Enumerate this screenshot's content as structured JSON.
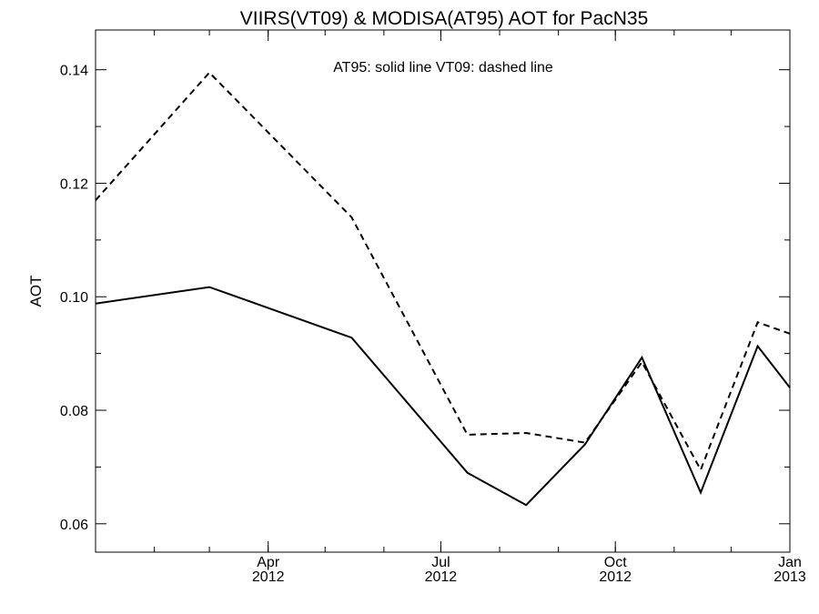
{
  "chart_data": {
    "type": "line",
    "title": "VIIRS(VT09) & MODISA(AT95)  AOT for PacN35",
    "xlabel": "",
    "ylabel": "AOT",
    "annotation": "AT95: solid line   VT09: dashed line",
    "x_range": [
      "2012-01-01",
      "2013-01-01"
    ],
    "ylim": [
      0.055,
      0.147
    ],
    "y_ticks": [
      {
        "value": 0.06,
        "label": "0.06"
      },
      {
        "value": 0.08,
        "label": "0.08"
      },
      {
        "value": 0.1,
        "label": "0.10"
      },
      {
        "value": 0.12,
        "label": "0.12"
      },
      {
        "value": 0.14,
        "label": "0.14"
      }
    ],
    "x_ticks": [
      {
        "date": "2012-04-01",
        "month": "Apr",
        "year": "2012"
      },
      {
        "date": "2012-07-01",
        "month": "Jul",
        "year": "2012"
      },
      {
        "date": "2012-10-01",
        "month": "Oct",
        "year": "2012"
      },
      {
        "date": "2013-01-01",
        "month": "Jan",
        "year": "2013"
      }
    ],
    "grid": false,
    "series": [
      {
        "name": "AT95",
        "style": "solid",
        "color": "#000000",
        "x": [
          "2012-01-01",
          "2012-03-01",
          "2012-05-15",
          "2012-07-15",
          "2012-08-15",
          "2012-09-15",
          "2012-10-15",
          "2012-11-15",
          "2012-12-15",
          "2013-01-01"
        ],
        "y": [
          0.0988,
          0.1017,
          0.0928,
          0.069,
          0.0633,
          0.074,
          0.0893,
          0.0655,
          0.0913,
          0.084
        ]
      },
      {
        "name": "VT09",
        "style": "dashed",
        "color": "#000000",
        "x": [
          "2012-01-01",
          "2012-03-01",
          "2012-05-15",
          "2012-07-15",
          "2012-08-15",
          "2012-09-15",
          "2012-10-15",
          "2012-11-15",
          "2012-12-15",
          "2013-01-01"
        ],
        "y": [
          0.117,
          0.1395,
          0.114,
          0.0757,
          0.076,
          0.0743,
          0.0885,
          0.0695,
          0.0955,
          0.0935
        ]
      }
    ]
  }
}
